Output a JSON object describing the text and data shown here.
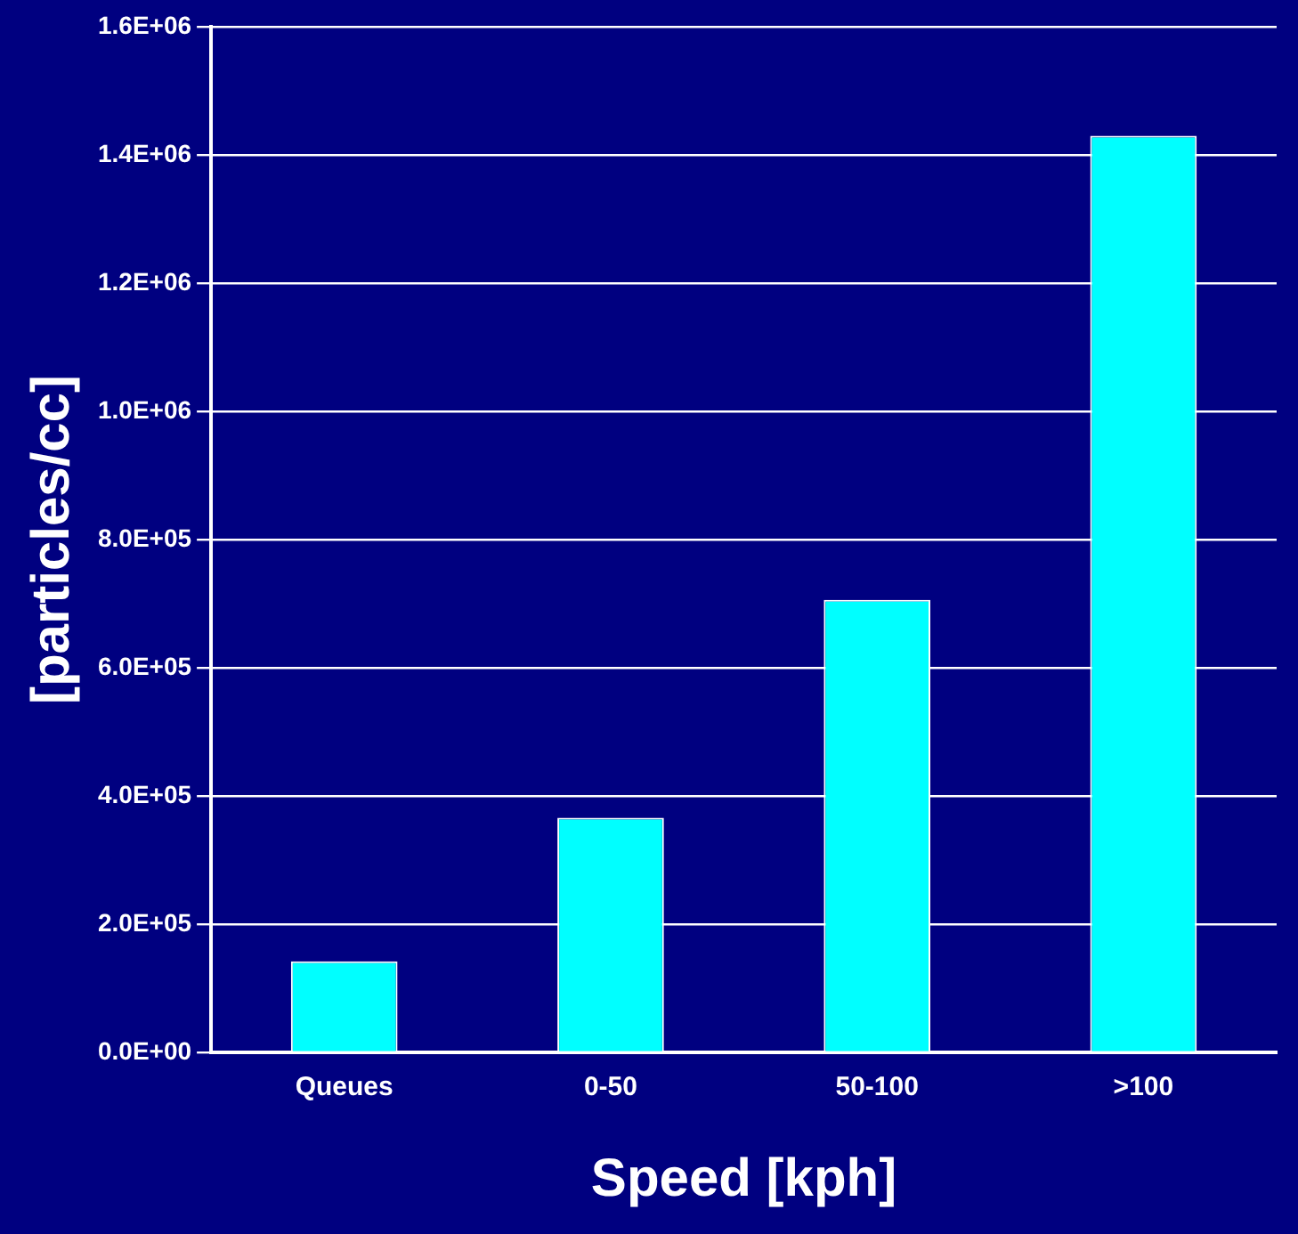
{
  "chart_data": {
    "type": "bar",
    "xlabel": "Speed [kph]",
    "ylabel": "[particles/cc]",
    "categories": [
      "Queues",
      "0-50",
      "50-100",
      ">100"
    ],
    "values": [
      142000,
      366000,
      706000,
      1430000
    ],
    "color": "#00ffff",
    "ylim": [
      0,
      1600000
    ],
    "yticks": [
      {
        "value": 0,
        "label": "0.0E+00"
      },
      {
        "value": 200000,
        "label": "2.0E+05"
      },
      {
        "value": 400000,
        "label": "4.0E+05"
      },
      {
        "value": 600000,
        "label": "6.0E+05"
      },
      {
        "value": 800000,
        "label": "8.0E+05"
      },
      {
        "value": 1000000,
        "label": "1.0E+06"
      },
      {
        "value": 1200000,
        "label": "1.2E+06"
      },
      {
        "value": 1400000,
        "label": "1.4E+06"
      },
      {
        "value": 1600000,
        "label": "1.6E+06"
      }
    ],
    "grid": "y"
  }
}
